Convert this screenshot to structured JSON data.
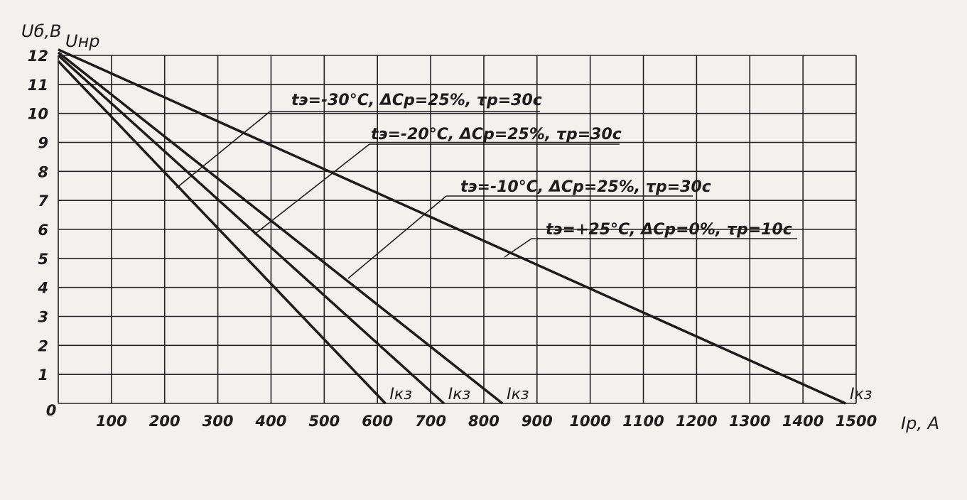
{
  "chart_data": {
    "type": "line",
    "title": "",
    "xlabel": "Iр, А",
    "ylabel": "Uб,В",
    "y_top_label": "Uнр",
    "xlim": [
      0,
      1500
    ],
    "ylim": [
      0,
      12
    ],
    "xticks": [
      0,
      100,
      200,
      300,
      400,
      500,
      600,
      700,
      800,
      900,
      1000,
      1100,
      1200,
      1300,
      1400,
      1500
    ],
    "yticks": [
      1,
      2,
      3,
      4,
      5,
      6,
      7,
      8,
      9,
      10,
      11,
      12
    ],
    "grid": true,
    "series": [
      {
        "name": "tэ=+25°С, ΔСр=0%, τр=10с",
        "x": [
          0,
          1480
        ],
        "y": [
          12.2,
          0
        ],
        "end_label": "Iкз"
      },
      {
        "name": "tэ=-10°С, ΔСр=25%, τр=30с",
        "x": [
          0,
          835
        ],
        "y": [
          12.1,
          0
        ],
        "end_label": "Iкз"
      },
      {
        "name": "tэ=-20°С, ΔСр=25%, τр=30с",
        "x": [
          0,
          725
        ],
        "y": [
          12.0,
          0
        ],
        "end_label": "Iкз"
      },
      {
        "name": "tэ=-30°С, ΔСр=25%, τр=30с",
        "x": [
          0,
          615
        ],
        "y": [
          11.8,
          0
        ],
        "end_label": "Iкз"
      }
    ]
  },
  "colors": {
    "ink": "#1c1c1c",
    "grid": "#222222",
    "paper": "#f2f1ee"
  }
}
